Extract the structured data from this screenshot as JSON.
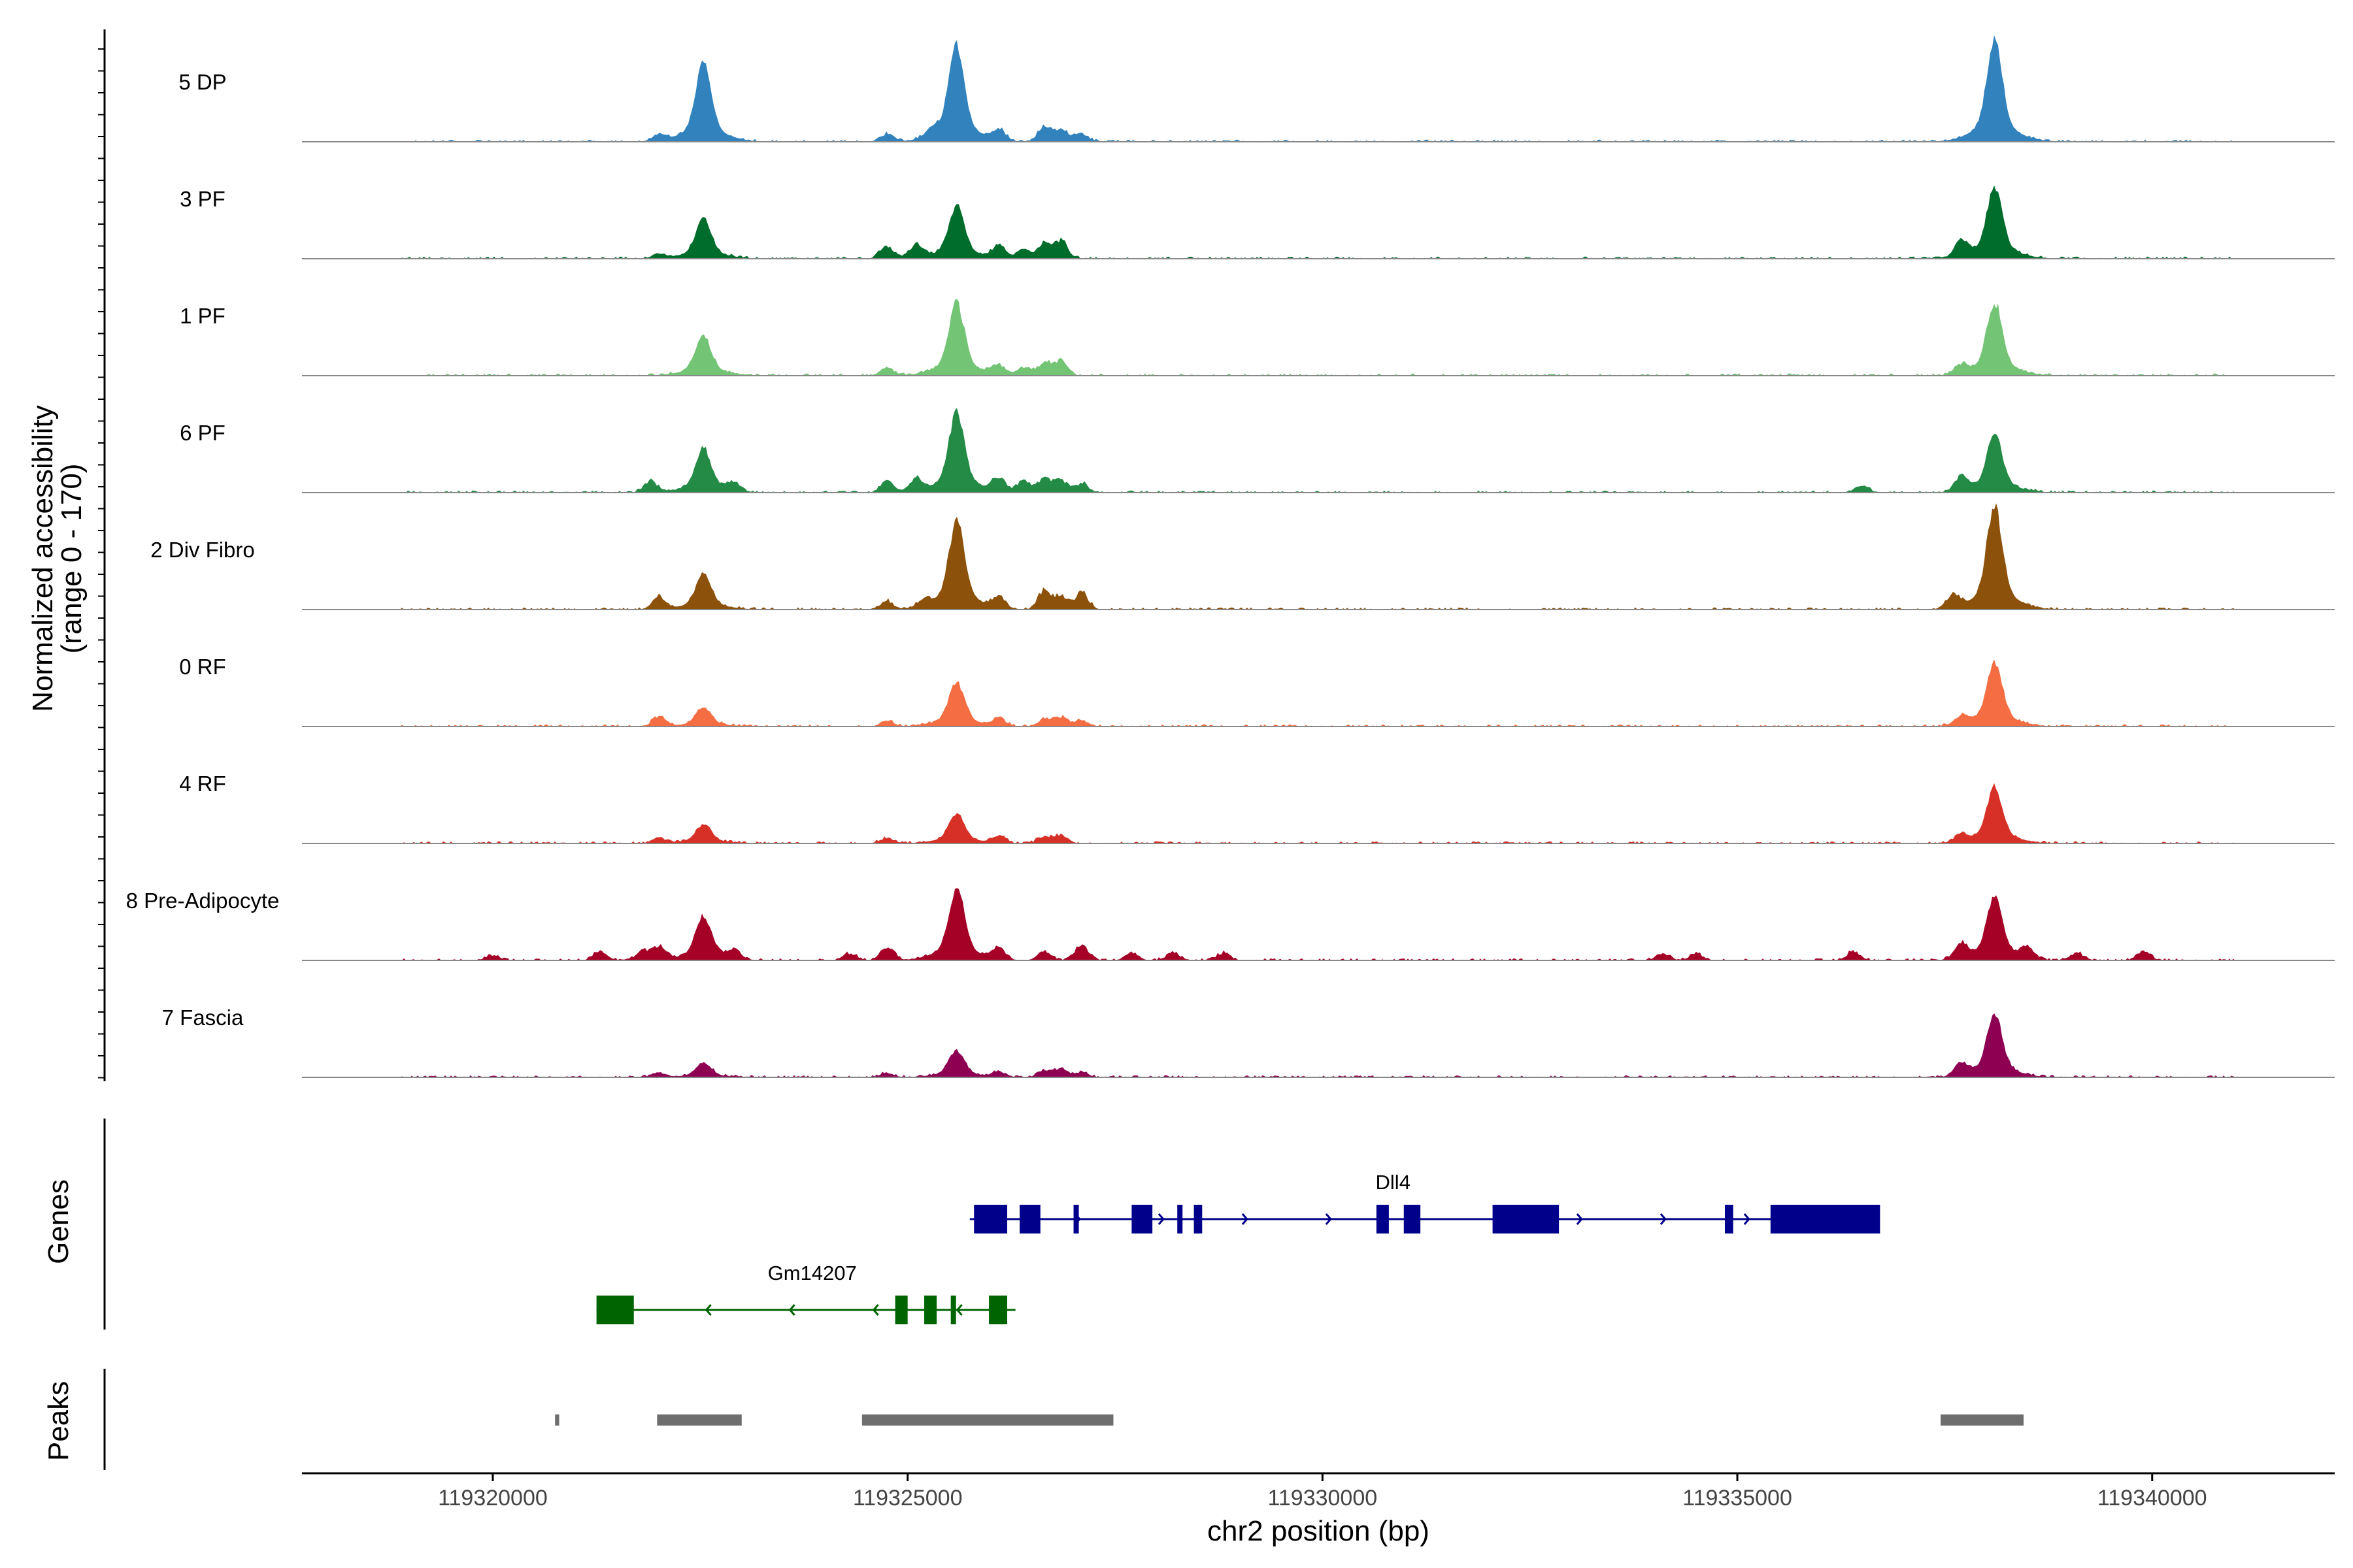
{
  "chart_data": {
    "type": "area",
    "title": "",
    "chromosome": "chr2",
    "xlabel": "chr2 position (bp)",
    "ylabel_line1": "Normalized accessibility",
    "ylabel_line2": "(range 0 - 170)",
    "y_range": [
      0,
      170
    ],
    "xlim": [
      119317700,
      119342200
    ],
    "xticks": [
      119320000,
      119325000,
      119330000,
      119335000,
      119340000
    ],
    "xtick_labels": [
      "119320000",
      "119325000",
      "119330000",
      "119335000",
      "119340000"
    ],
    "peak_centers": [
      119322540,
      119325590,
      119338100
    ],
    "tracks": [
      {
        "name": "5 DP",
        "color": "#3182bd",
        "peaks": [
          [
            119322540,
            0.68
          ],
          [
            119325590,
            0.82
          ],
          [
            119338100,
            0.88
          ]
        ],
        "minor": [
          [
            119322000,
            0.06
          ],
          [
            119324750,
            0.09
          ],
          [
            119325300,
            0.08
          ],
          [
            119326100,
            0.12
          ],
          [
            119326650,
            0.16
          ],
          [
            119326850,
            0.14
          ],
          [
            119327100,
            0.09
          ]
        ]
      },
      {
        "name": "3 PF",
        "color": "#006d2c",
        "peaks": [
          [
            119322540,
            0.34
          ],
          [
            119325590,
            0.45
          ],
          [
            119338100,
            0.6
          ]
        ],
        "minor": [
          [
            119322000,
            0.05
          ],
          [
            119324750,
            0.14
          ],
          [
            119325100,
            0.15
          ],
          [
            119326100,
            0.13
          ],
          [
            119326400,
            0.11
          ],
          [
            119326650,
            0.16
          ],
          [
            119326850,
            0.2
          ],
          [
            119337700,
            0.17
          ]
        ]
      },
      {
        "name": "1 PF",
        "color": "#74c476",
        "peaks": [
          [
            119322540,
            0.34
          ],
          [
            119325590,
            0.62
          ],
          [
            119338100,
            0.62
          ]
        ],
        "minor": [
          [
            119324750,
            0.08
          ],
          [
            119326100,
            0.11
          ],
          [
            119326400,
            0.09
          ],
          [
            119326650,
            0.13
          ],
          [
            119326850,
            0.17
          ],
          [
            119337700,
            0.1
          ]
        ]
      },
      {
        "name": "6 PF",
        "color": "#238b45",
        "peaks": [
          [
            119322540,
            0.37
          ],
          [
            119325590,
            0.68
          ],
          [
            119338100,
            0.5
          ]
        ],
        "minor": [
          [
            119321900,
            0.12
          ],
          [
            119322900,
            0.1
          ],
          [
            119324750,
            0.12
          ],
          [
            119325100,
            0.14
          ],
          [
            119326100,
            0.16
          ],
          [
            119326400,
            0.13
          ],
          [
            119326650,
            0.15
          ],
          [
            119326850,
            0.14
          ],
          [
            119327100,
            0.1
          ],
          [
            119337700,
            0.16
          ],
          [
            119336500,
            0.08
          ]
        ]
      },
      {
        "name": "2 Div Fibro",
        "color": "#8c510a",
        "peaks": [
          [
            119322540,
            0.3
          ],
          [
            119325590,
            0.75
          ],
          [
            119338100,
            0.88
          ]
        ],
        "minor": [
          [
            119322000,
            0.14
          ],
          [
            119324750,
            0.09
          ],
          [
            119325200,
            0.08
          ],
          [
            119326100,
            0.13
          ],
          [
            119326650,
            0.2
          ],
          [
            119326850,
            0.14
          ],
          [
            119327100,
            0.19
          ],
          [
            119337600,
            0.14
          ]
        ]
      },
      {
        "name": "0 RF",
        "color": "#f46d43",
        "peaks": [
          [
            119322540,
            0.16
          ],
          [
            119325590,
            0.38
          ],
          [
            119338100,
            0.55
          ]
        ],
        "minor": [
          [
            119322000,
            0.1
          ],
          [
            119324750,
            0.06
          ],
          [
            119326100,
            0.08
          ],
          [
            119326650,
            0.08
          ],
          [
            119326850,
            0.11
          ],
          [
            119327100,
            0.07
          ],
          [
            119337700,
            0.09
          ]
        ]
      },
      {
        "name": "4 RF",
        "color": "#d73027",
        "peaks": [
          [
            119322540,
            0.16
          ],
          [
            119325590,
            0.26
          ],
          [
            119338100,
            0.48
          ]
        ],
        "minor": [
          [
            119322000,
            0.06
          ],
          [
            119324750,
            0.06
          ],
          [
            119326100,
            0.08
          ],
          [
            119326650,
            0.08
          ],
          [
            119326850,
            0.09
          ],
          [
            119337700,
            0.08
          ]
        ]
      },
      {
        "name": "8 Pre-Adipocyte",
        "color": "#a50026",
        "peaks": [
          [
            119322540,
            0.38
          ],
          [
            119325590,
            0.62
          ],
          [
            119338100,
            0.55
          ]
        ],
        "minor": [
          [
            119320000,
            0.06
          ],
          [
            119321300,
            0.1
          ],
          [
            119321800,
            0.1
          ],
          [
            119322000,
            0.15
          ],
          [
            119322900,
            0.1
          ],
          [
            119324300,
            0.08
          ],
          [
            119324750,
            0.15
          ],
          [
            119326100,
            0.12
          ],
          [
            119326650,
            0.1
          ],
          [
            119327100,
            0.18
          ],
          [
            119327700,
            0.08
          ],
          [
            119328200,
            0.09
          ],
          [
            119328800,
            0.08
          ],
          [
            119334100,
            0.08
          ],
          [
            119334500,
            0.07
          ],
          [
            119336400,
            0.1
          ],
          [
            119337700,
            0.16
          ],
          [
            119338500,
            0.12
          ],
          [
            119339100,
            0.08
          ],
          [
            119339900,
            0.1
          ]
        ]
      },
      {
        "name": "7 Fascia",
        "color": "#8e0152",
        "peaks": [
          [
            119322540,
            0.12
          ],
          [
            119325590,
            0.23
          ],
          [
            119338100,
            0.54
          ]
        ],
        "minor": [
          [
            119322000,
            0.05
          ],
          [
            119324750,
            0.05
          ],
          [
            119326100,
            0.06
          ],
          [
            119326650,
            0.08
          ],
          [
            119326850,
            0.1
          ],
          [
            119327100,
            0.06
          ],
          [
            119337700,
            0.14
          ]
        ]
      }
    ],
    "genes_label": "Genes",
    "genes": [
      {
        "name": "Dll4",
        "strand": "+",
        "color": "#00008b",
        "start": 119325750,
        "end": 119335950,
        "label_pos": 119330850,
        "exons": [
          [
            119325800,
            119326200
          ],
          [
            119326350,
            119326600
          ],
          [
            119327000,
            119327050
          ],
          [
            119327700,
            119327950
          ],
          [
            119328250,
            119328300
          ],
          [
            119328450,
            119328550
          ],
          [
            119330650,
            119330800
          ],
          [
            119330980,
            119331180
          ],
          [
            119332050,
            119332850
          ],
          [
            119334850,
            119334950
          ],
          [
            119335400,
            119336720
          ]
        ]
      },
      {
        "name": "Gm14207",
        "strand": "-",
        "color": "#006400",
        "start": 119321250,
        "end": 119326300,
        "label_pos": 119323850,
        "exons": [
          [
            119321250,
            119321700
          ],
          [
            119324850,
            119325000
          ],
          [
            119325200,
            119325350
          ],
          [
            119325520,
            119325570
          ],
          [
            119325980,
            119326200
          ]
        ]
      }
    ],
    "peaks_label": "Peaks",
    "peak_regions": [
      [
        119320750,
        119320800
      ],
      [
        119321980,
        119323000
      ],
      [
        119324450,
        119327480
      ],
      [
        119337450,
        119338450
      ]
    ]
  }
}
